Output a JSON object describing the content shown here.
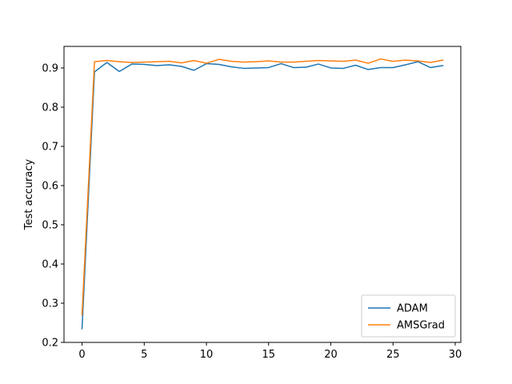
{
  "chart_data": {
    "type": "line",
    "title": "",
    "xlabel": "",
    "ylabel": "Test accuracy",
    "xlim": [
      -1.45,
      30.45
    ],
    "ylim": [
      0.2,
      0.955
    ],
    "xticks": [
      0,
      5,
      10,
      15,
      20,
      25,
      30
    ],
    "yticks": [
      0.2,
      0.3,
      0.4,
      0.5,
      0.6,
      0.7,
      0.8,
      0.9
    ],
    "grid": false,
    "legend_position": "lower-right",
    "x": [
      0,
      1,
      2,
      3,
      4,
      5,
      6,
      7,
      8,
      9,
      10,
      11,
      12,
      13,
      14,
      15,
      16,
      17,
      18,
      19,
      20,
      21,
      22,
      23,
      24,
      25,
      26,
      27,
      28,
      29
    ],
    "series": [
      {
        "name": "ADAM",
        "color": "#1f77b4",
        "values": [
          0.235,
          0.89,
          0.914,
          0.891,
          0.91,
          0.909,
          0.906,
          0.908,
          0.904,
          0.894,
          0.911,
          0.909,
          0.903,
          0.899,
          0.9,
          0.901,
          0.911,
          0.901,
          0.902,
          0.91,
          0.9,
          0.899,
          0.907,
          0.896,
          0.901,
          0.901,
          0.908,
          0.916,
          0.901,
          0.906
        ]
      },
      {
        "name": "AMSGrad",
        "color": "#ff7f0e",
        "values": [
          0.27,
          0.916,
          0.919,
          0.916,
          0.914,
          0.915,
          0.916,
          0.917,
          0.913,
          0.919,
          0.912,
          0.922,
          0.917,
          0.915,
          0.916,
          0.918,
          0.915,
          0.915,
          0.917,
          0.919,
          0.918,
          0.917,
          0.92,
          0.912,
          0.923,
          0.917,
          0.92,
          0.918,
          0.914,
          0.92
        ]
      }
    ]
  }
}
